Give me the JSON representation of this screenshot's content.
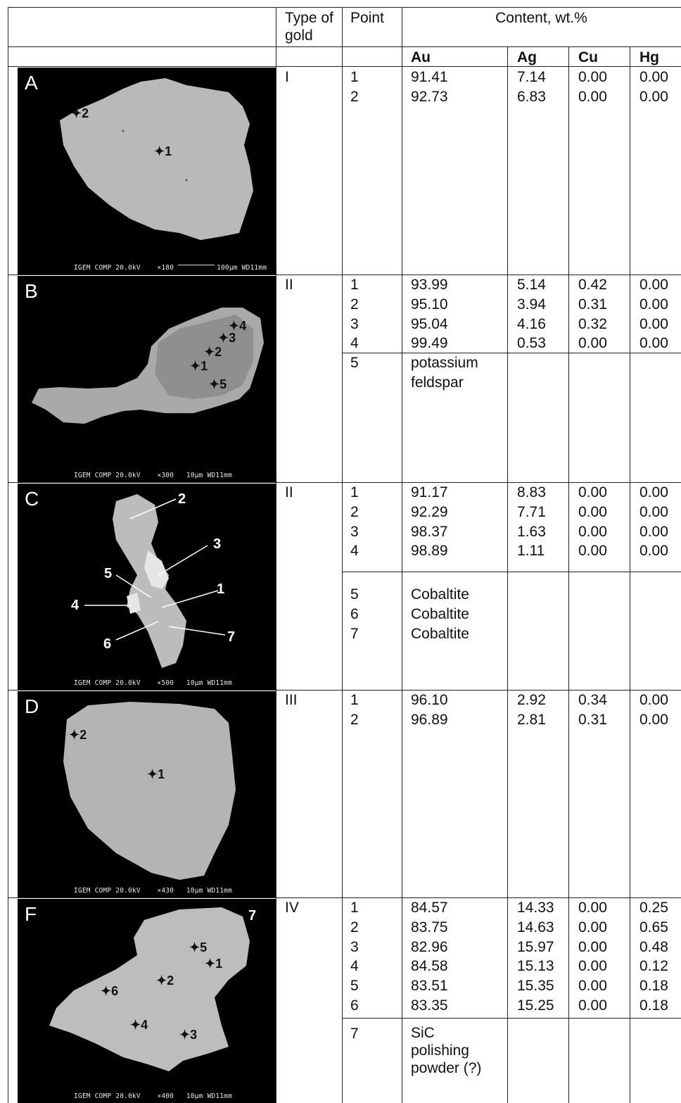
{
  "header": {
    "type_of_gold": "Type of gold",
    "point": "Point",
    "content": "Content, wt.%",
    "columns": [
      "Au",
      "Ag",
      "Cu",
      "Hg"
    ]
  },
  "panels": [
    {
      "letter": "A",
      "type": "I",
      "footer": {
        "instr": "IGEM COMP  20.0kV",
        "mag": "×180",
        "scale": "100μm",
        "wd": "WD11mm"
      },
      "rows": [
        {
          "point": "1",
          "au": "91.41",
          "ag": "7.14",
          "cu": "0.00",
          "hg": "0.00"
        },
        {
          "point": "2",
          "au": "92.73",
          "ag": "6.83",
          "cu": "0.00",
          "hg": "0.00"
        }
      ],
      "notes": [],
      "markers": [
        "1",
        "2"
      ]
    },
    {
      "letter": "B",
      "type": "II",
      "footer": {
        "instr": "IGEM COMP  20.0kV",
        "mag": "×300",
        "scale": "10μm",
        "wd": "WD11mm"
      },
      "rows": [
        {
          "point": "1",
          "au": "93.99",
          "ag": "5.14",
          "cu": "0.42",
          "hg": "0.00"
        },
        {
          "point": "2",
          "au": "95.10",
          "ag": "3.94",
          "cu": "0.31",
          "hg": "0.00"
        },
        {
          "point": "3",
          "au": "95.04",
          "ag": "4.16",
          "cu": "0.32",
          "hg": "0.00"
        },
        {
          "point": "4",
          "au": "99.49",
          "ag": "0.53",
          "cu": "0.00",
          "hg": "0.00"
        }
      ],
      "notes": [
        {
          "point": "5",
          "text": "potassium\nfeldspar"
        }
      ],
      "markers": [
        "1",
        "2",
        "3",
        "4",
        "5"
      ]
    },
    {
      "letter": "C",
      "type": "II",
      "footer": {
        "instr": "IGEM COMP  20.0kV",
        "mag": "×500",
        "scale": "10μm",
        "wd": "WD11mm"
      },
      "rows": [
        {
          "point": "1",
          "au": "91.17",
          "ag": "8.83",
          "cu": "0.00",
          "hg": "0.00"
        },
        {
          "point": "2",
          "au": "92.29",
          "ag": "7.71",
          "cu": "0.00",
          "hg": "0.00"
        },
        {
          "point": "3",
          "au": "98.37",
          "ag": "1.63",
          "cu": "0.00",
          "hg": "0.00"
        },
        {
          "point": "4",
          "au": "98.89",
          "ag": "1.11",
          "cu": "0.00",
          "hg": "0.00"
        }
      ],
      "notes": [
        {
          "point": "5",
          "text": "Cobaltite"
        },
        {
          "point": "6",
          "text": "Cobaltite"
        },
        {
          "point": "7",
          "text": "Cobaltite"
        }
      ],
      "markers": [
        "1",
        "2",
        "3",
        "4",
        "5",
        "6",
        "7"
      ]
    },
    {
      "letter": "D",
      "type": "III",
      "footer": {
        "instr": "IGEM COMP  20.0kV",
        "mag": "×430",
        "scale": "10μm",
        "wd": "WD11mm"
      },
      "rows": [
        {
          "point": "1",
          "au": "96.10",
          "ag": "2.92",
          "cu": "0.34",
          "hg": "0.00"
        },
        {
          "point": "2",
          "au": "96.89",
          "ag": "2.81",
          "cu": "0.31",
          "hg": "0.00"
        }
      ],
      "notes": [],
      "markers": [
        "1",
        "2"
      ]
    },
    {
      "letter": "F",
      "type": "IV",
      "footer": {
        "instr": "IGEM COMP  20.0kV",
        "mag": "×400",
        "scale": "10μm",
        "wd": "WD11mm"
      },
      "rows": [
        {
          "point": "1",
          "au": "84.57",
          "ag": "14.33",
          "cu": "0.00",
          "hg": "0.25"
        },
        {
          "point": "2",
          "au": "83.75",
          "ag": "14.63",
          "cu": "0.00",
          "hg": "0.65"
        },
        {
          "point": "3",
          "au": "82.96",
          "ag": "15.97",
          "cu": "0.00",
          "hg": "0.48"
        },
        {
          "point": "4",
          "au": "84.58",
          "ag": "15.13",
          "cu": "0.00",
          "hg": "0.12"
        },
        {
          "point": "5",
          "au": "83.51",
          "ag": "15.35",
          "cu": "0.00",
          "hg": "0.18"
        },
        {
          "point": "6",
          "au": "83.35",
          "ag": "15.25",
          "cu": "0.00",
          "hg": "0.18"
        }
      ],
      "notes": [
        {
          "point": "7",
          "text": "SiC\npolishing\npowder (?)"
        }
      ],
      "markers": [
        "1",
        "2",
        "3",
        "4",
        "5",
        "6",
        "7"
      ]
    }
  ]
}
